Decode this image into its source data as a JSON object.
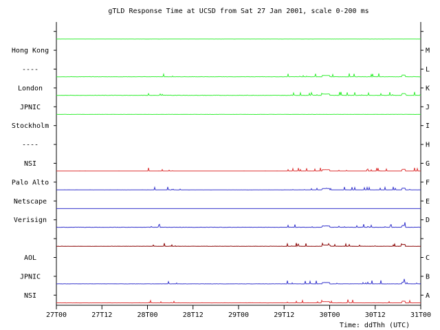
{
  "chart_data": {
    "type": "line",
    "title": "gTLD Response Time at UCSD from Sat 27 Jan 2001, scale 0-200 ms",
    "xlabel": "Time: ddThh (UTC)",
    "x_ticks": [
      "27T00",
      "27T12",
      "28T00",
      "28T12",
      "29T00",
      "29T12",
      "30T00",
      "30T12",
      "31T00"
    ],
    "x_range_hours": [
      0,
      96
    ],
    "y_unit": "ms",
    "y_range_per_row": [
      0,
      200
    ],
    "left_labels": [
      "",
      "Hong Kong",
      "----",
      "London",
      "JPNIC",
      "Stockholm",
      "----",
      "NSI",
      "Palo Alto",
      "Netscape",
      "Verisign",
      "",
      "AOL",
      "JPNIC",
      "NSI"
    ],
    "right_labels": [
      "",
      "M",
      "L",
      "K",
      "J",
      "I",
      "H",
      "G",
      "F",
      "E",
      "D",
      "",
      "C",
      "B",
      "A"
    ],
    "rows": [
      {
        "color": "#33ee33",
        "baseline_ms": 5,
        "noise": 1.5,
        "spiky": false
      },
      {
        "color": "#33ee33",
        "baseline_ms": null
      },
      {
        "color": "#33ee33",
        "baseline_ms": 5,
        "noise": 2.5,
        "spiky": true
      },
      {
        "color": "#33ee33",
        "baseline_ms": 8,
        "noise": 4,
        "spiky": true
      },
      {
        "color": "#33ee33",
        "baseline_ms": 5,
        "noise": 1.5,
        "spiky": false
      },
      {
        "color": "#33ee33",
        "baseline_ms": null
      },
      {
        "color": "#33ee33",
        "baseline_ms": null
      },
      {
        "color": "#dd3333",
        "baseline_ms": 4,
        "noise": 1,
        "spiky": true
      },
      {
        "color": "#3333cc",
        "baseline_ms": 4,
        "noise": 1,
        "spiky": true
      },
      {
        "color": "#3333cc",
        "baseline_ms": 5,
        "noise": 0.5,
        "spiky": false
      },
      {
        "color": "#3333cc",
        "baseline_ms": 7,
        "noise": 3,
        "spiky": true
      },
      {
        "color": "#880000",
        "baseline_ms": 5,
        "noise": 3,
        "spiky": true
      },
      {
        "color": "#3333cc",
        "baseline_ms": null
      },
      {
        "color": "#3333cc",
        "baseline_ms": 6,
        "noise": 3,
        "spiky": true
      },
      {
        "color": "#dd3333",
        "baseline_ms": 4,
        "noise": 1,
        "spiky": true
      }
    ],
    "grid": false,
    "legend": "none"
  }
}
